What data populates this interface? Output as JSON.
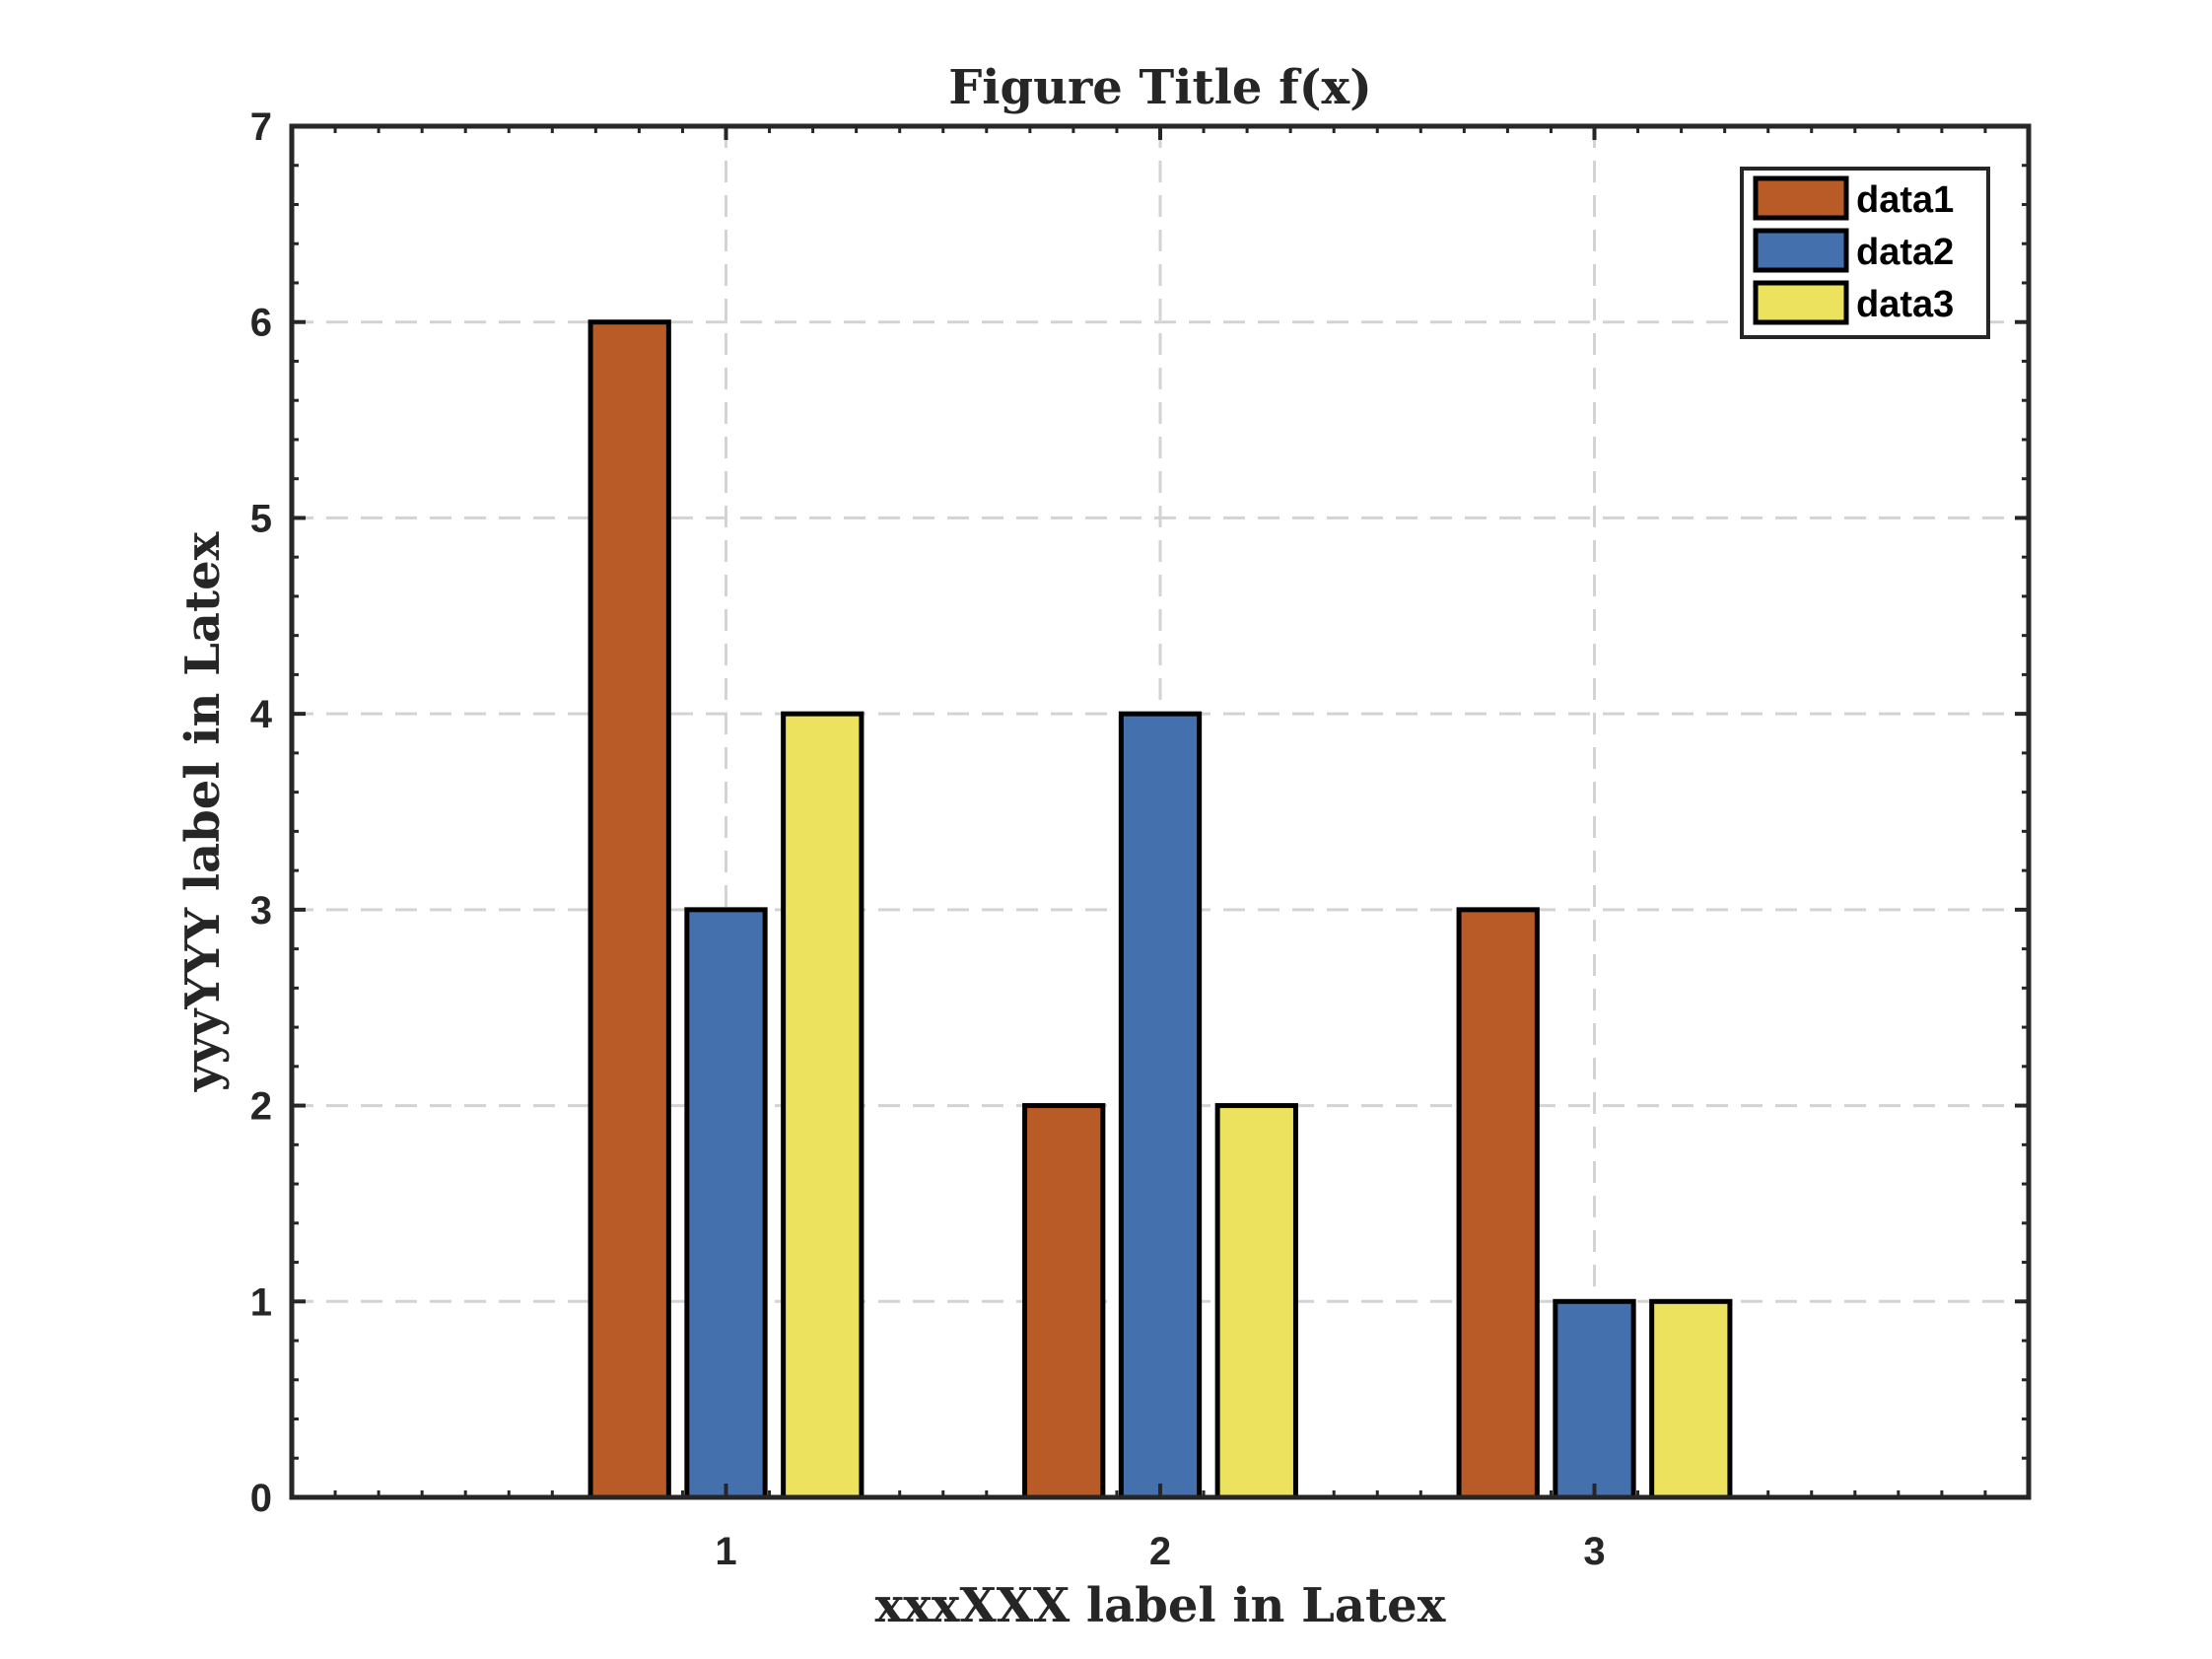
{
  "chart_data": {
    "type": "bar",
    "title": "Figure Title f(x)",
    "xlabel": "xxxXXX label in Latex",
    "ylabel": "yyyYYY label in Latex",
    "categories": [
      "1",
      "2",
      "3"
    ],
    "series": [
      {
        "name": "data1",
        "values": [
          6,
          2,
          3
        ],
        "color": "#B95B26"
      },
      {
        "name": "data2",
        "values": [
          3,
          4,
          1
        ],
        "color": "#4471AD"
      },
      {
        "name": "data3",
        "values": [
          4,
          2,
          1
        ],
        "color": "#EDE25E"
      }
    ],
    "ylim": [
      0,
      7
    ],
    "xlim": [
      0,
      4
    ],
    "yticks": [
      "0",
      "1",
      "2",
      "3",
      "4",
      "5",
      "6",
      "7"
    ],
    "grid": true,
    "legend_position": "top-right"
  }
}
